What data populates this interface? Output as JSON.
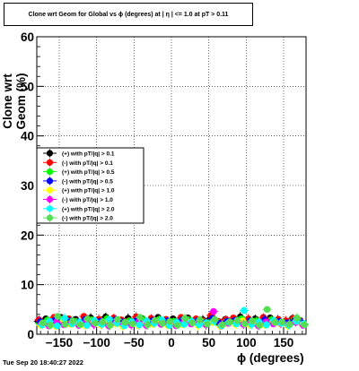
{
  "title": "Clone wrt Geom for Global vs ϕ (degrees) at |  η | <= 1.0 at pT > 0.11",
  "footer": "Tue Sep 20 18:40:27 2022",
  "chart_data": {
    "type": "scatter",
    "title": "Clone wrt Geom for Global vs ϕ (degrees) at |  η | <= 1.0 at pT > 0.11",
    "xlabel": "ϕ (degrees)",
    "ylabel": "Clone wrt Geom (%)",
    "xlim": [
      -180,
      180
    ],
    "ylim": [
      0,
      60
    ],
    "x_ticks": [
      -150,
      -100,
      -50,
      0,
      50,
      100,
      150
    ],
    "y_ticks": [
      0,
      10,
      20,
      30,
      40,
      50,
      60
    ],
    "x_tick_labels": [
      "−150",
      "−100",
      "−50",
      "0",
      "50",
      "100",
      "150"
    ],
    "y_tick_labels": [
      "0",
      "10",
      "20",
      "30",
      "40",
      "50",
      "60"
    ],
    "grid": true,
    "legend_placement": "middle-left",
    "series": [
      {
        "name": "(+) with pT/|q| > 0.1",
        "color": "#000000",
        "marker": "circle",
        "values": [
          2.6,
          3.1,
          2.4,
          3.4,
          2.8,
          3.0,
          2.5,
          3.3,
          2.7,
          3.5,
          2.9,
          2.4,
          3.2,
          2.6,
          3.0,
          2.8,
          3.4,
          2.5,
          3.1,
          2.7,
          3.3,
          2.6,
          2.9,
          3.2,
          2.4,
          3.0,
          2.8,
          3.5,
          2.7,
          3.1,
          2.6,
          3.3,
          2.9,
          2.5,
          3.2,
          2.8
        ]
      },
      {
        "name": "(-) with pT/|q| > 0.1",
        "color": "#ff0000",
        "marker": "circle",
        "values": [
          2.9,
          2.5,
          3.4,
          2.7,
          3.1,
          2.6,
          3.6,
          2.8,
          3.0,
          2.5,
          3.3,
          2.9,
          2.7,
          3.5,
          2.6,
          3.2,
          2.8,
          3.0,
          2.5,
          3.4,
          2.9,
          3.1,
          2.7,
          3.8,
          2.6,
          3.0,
          3.3,
          2.8,
          3.1,
          2.5,
          3.4,
          2.9,
          3.0,
          2.7,
          3.2,
          2.6
        ]
      },
      {
        "name": "(+) with pT/|q| > 0.5",
        "color": "#00ff00",
        "marker": "circle",
        "values": [
          2.2,
          2.8,
          2.0,
          3.0,
          2.4,
          2.6,
          2.1,
          2.9,
          2.3,
          3.1,
          2.5,
          2.0,
          2.7,
          2.2,
          2.8,
          2.4,
          3.0,
          2.1,
          2.6,
          2.3,
          2.9,
          2.2,
          2.5,
          2.8,
          2.0,
          2.6,
          2.4,
          3.1,
          2.3,
          2.7,
          2.2,
          2.9,
          2.5,
          2.1,
          2.8,
          2.4
        ]
      },
      {
        "name": "(-) with pT/|q| > 0.5",
        "color": "#0000ff",
        "marker": "circle",
        "values": [
          2.5,
          2.1,
          2.9,
          2.3,
          2.7,
          2.2,
          3.0,
          2.4,
          2.6,
          2.1,
          2.8,
          2.5,
          2.3,
          2.9,
          2.2,
          2.7,
          2.4,
          2.6,
          2.1,
          2.9,
          2.5,
          2.7,
          2.3,
          3.2,
          2.2,
          2.6,
          2.8,
          2.4,
          2.7,
          2.1,
          2.9,
          2.5,
          2.6,
          2.3,
          2.8,
          2.2
        ]
      },
      {
        "name": "(+) with pT/|q| > 1.0",
        "color": "#ffff00",
        "marker": "circle",
        "values": [
          1.8,
          2.4,
          1.6,
          2.6,
          2.0,
          2.2,
          1.7,
          2.5,
          1.9,
          2.7,
          2.1,
          1.6,
          2.3,
          1.8,
          2.4,
          2.0,
          2.6,
          1.7,
          2.2,
          1.9,
          2.5,
          1.8,
          2.1,
          2.4,
          1.6,
          2.2,
          2.0,
          2.7,
          1.9,
          2.3,
          1.8,
          2.5,
          2.1,
          1.7,
          2.4,
          2.0
        ]
      },
      {
        "name": "(-) with pT/|q| > 1.0",
        "color": "#ff00ff",
        "marker": "circle",
        "values": [
          2.1,
          1.7,
          2.5,
          1.9,
          2.3,
          1.8,
          2.6,
          2.0,
          2.2,
          1.7,
          2.4,
          2.1,
          1.9,
          2.5,
          1.8,
          2.3,
          2.0,
          2.2,
          1.7,
          2.5,
          2.1,
          2.3,
          1.9,
          4.6,
          1.8,
          2.2,
          2.4,
          2.0,
          2.3,
          1.7,
          2.5,
          2.1,
          2.2,
          1.9,
          2.4,
          1.8
        ]
      },
      {
        "name": "(+) with pT/|q| > 2.0",
        "color": "#00ffff",
        "marker": "circle",
        "values": [
          1.9,
          2.6,
          1.7,
          3.2,
          2.1,
          2.4,
          1.8,
          2.8,
          2.0,
          3.0,
          2.3,
          1.7,
          2.5,
          1.9,
          2.7,
          2.2,
          2.9,
          1.8,
          2.4,
          2.0,
          2.6,
          1.9,
          2.3,
          2.7,
          1.7,
          2.4,
          2.1,
          4.8,
          2.0,
          2.5,
          1.9,
          2.8,
          2.2,
          1.8,
          2.6,
          2.1
        ]
      },
      {
        "name": "(-) with pT/|q| > 2.0",
        "color": "#55dd55",
        "marker": "circle",
        "values": [
          2.3,
          1.8,
          3.6,
          2.0,
          2.7,
          1.9,
          3.1,
          2.2,
          2.5,
          1.8,
          3.0,
          2.4,
          2.1,
          3.4,
          1.9,
          2.8,
          2.2,
          2.6,
          1.8,
          3.2,
          2.3,
          2.9,
          2.0,
          3.0,
          1.9,
          2.5,
          2.8,
          2.1,
          2.7,
          1.8,
          5.0,
          2.4,
          2.5,
          2.0,
          3.3,
          1.9
        ]
      }
    ],
    "x": [
      -175,
      -165,
      -155,
      -145,
      -135,
      -125,
      -115,
      -105,
      -95,
      -85,
      -75,
      -65,
      -55,
      -45,
      -35,
      -25,
      -15,
      -5,
      5,
      15,
      25,
      35,
      45,
      55,
      65,
      75,
      85,
      95,
      105,
      115,
      125,
      135,
      145,
      155,
      165,
      175
    ]
  }
}
